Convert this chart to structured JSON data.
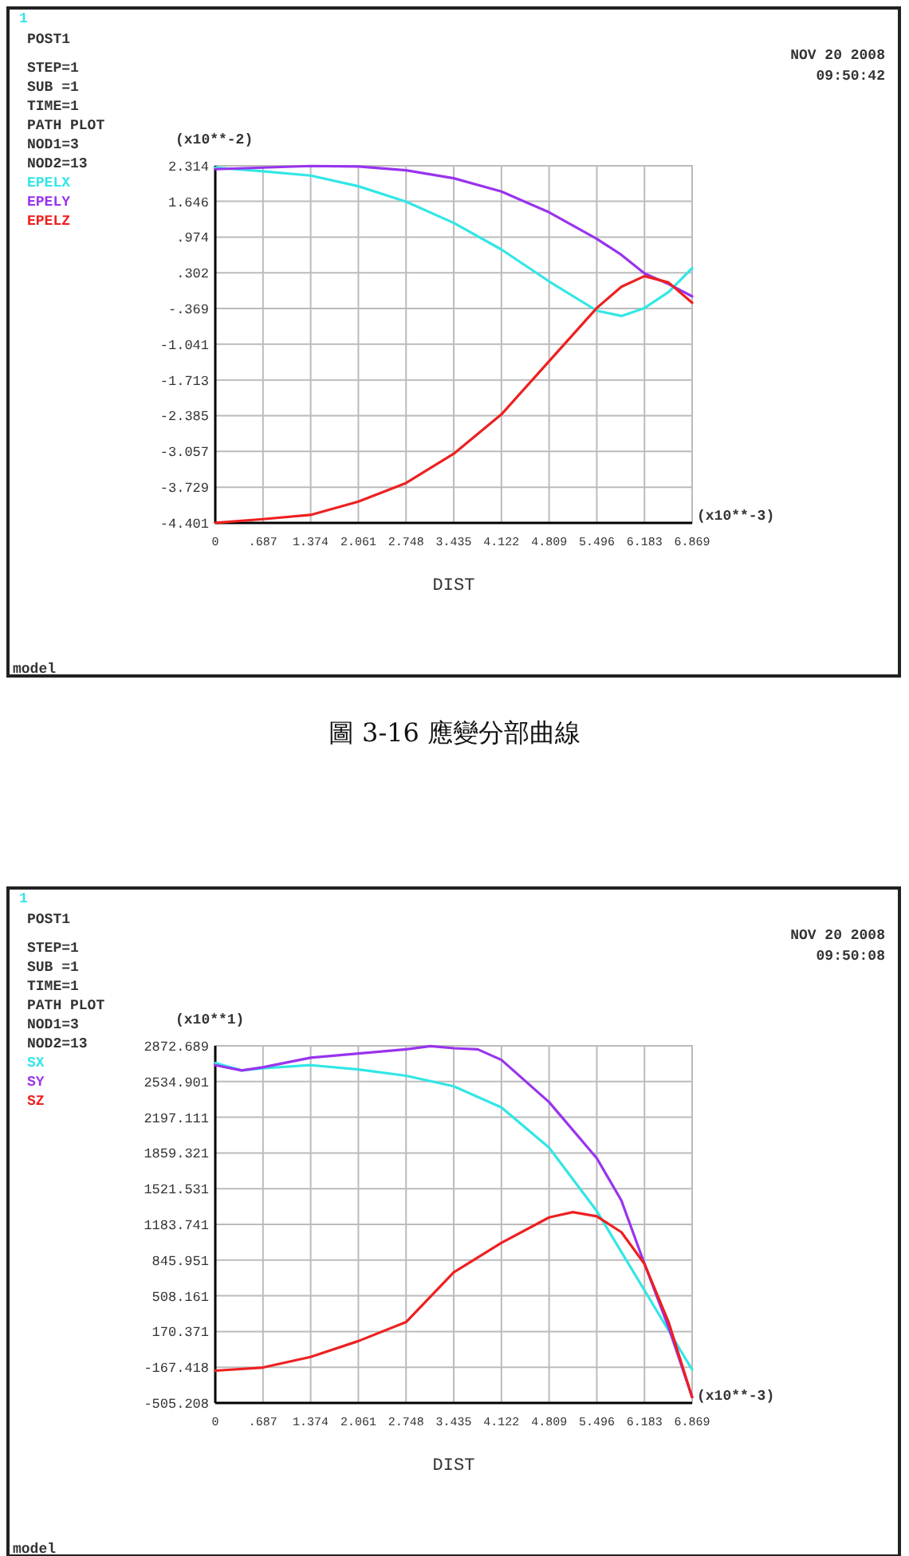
{
  "chart_data": [
    {
      "type": "line",
      "xlabel": "DIST",
      "grid": true,
      "legend": "left",
      "annotations": [
        "1",
        "POST1",
        "STEP=1",
        "SUB =1",
        "TIME=1",
        "PATH PLOT",
        "NOD1=3",
        "NOD2=13",
        "NOV 20 2008",
        "09:50:42",
        "(x10**-2)",
        "(x10**-3)",
        "model",
        "圖 3-16 應變分部曲線"
      ],
      "x": [
        0,
        0.687,
        1.374,
        2.061,
        2.748,
        3.435,
        4.122,
        4.809,
        5.496,
        5.85,
        6.183,
        6.53,
        6.869
      ],
      "xlim": [
        0,
        6.869
      ],
      "xticks": [
        0,
        {
          "value": 0.687,
          "label": ".687"
        },
        1.374,
        2.061,
        2.748,
        3.435,
        4.122,
        4.809,
        5.496,
        6.183,
        6.869
      ],
      "ylim": [
        -4.401,
        2.314
      ],
      "yticks": [
        2.314,
        1.646,
        {
          "value": 0.974,
          "label": ".974"
        },
        {
          "value": 0.302,
          "label": ".302"
        },
        {
          "value": -0.369,
          "label": "-.369"
        },
        -1.041,
        -1.713,
        -2.385,
        -3.057,
        -3.729,
        -4.401
      ],
      "series": [
        {
          "name": "EPELX",
          "color": "#33e6e6",
          "values": [
            2.28,
            2.21,
            2.13,
            1.93,
            1.64,
            1.24,
            0.74,
            0.14,
            -0.41,
            -0.51,
            -0.36,
            -0.06,
            0.39
          ]
        },
        {
          "name": "EPELY",
          "color": "#9933ee",
          "values": [
            2.25,
            2.28,
            2.31,
            2.3,
            2.23,
            2.08,
            1.83,
            1.44,
            0.94,
            0.64,
            0.29,
            0.09,
            -0.14
          ]
        },
        {
          "name": "EPELZ",
          "color": "#ee2020",
          "values": [
            -4.4,
            -4.33,
            -4.25,
            -4.0,
            -3.65,
            -3.1,
            -2.36,
            -1.36,
            -0.36,
            0.04,
            0.24,
            0.12,
            -0.26
          ]
        }
      ]
    },
    {
      "type": "line",
      "xlabel": "DIST",
      "grid": true,
      "legend": "left",
      "annotations": [
        "1",
        "POST1",
        "STEP=1",
        "SUB =1",
        "TIME=1",
        "PATH PLOT",
        "NOD1=3",
        "NOD2=13",
        "NOV 20 2008",
        "09:50:08",
        "(x10**1)",
        "(x10**-3)",
        "model"
      ],
      "x": [
        0,
        0.38,
        0.687,
        1.374,
        2.061,
        2.748,
        3.1,
        3.435,
        3.78,
        4.122,
        4.809,
        5.15,
        5.496,
        5.85,
        6.183,
        6.53,
        6.869
      ],
      "xlim": [
        0,
        6.869
      ],
      "xticks": [
        0,
        {
          "value": 0.687,
          "label": ".687"
        },
        1.374,
        2.061,
        2.748,
        3.435,
        4.122,
        4.809,
        5.496,
        6.183,
        6.869
      ],
      "ylim": [
        -505.208,
        2872.689
      ],
      "yticks": [
        2872.689,
        2534.901,
        2197.111,
        1859.321,
        1521.531,
        1183.741,
        845.951,
        508.161,
        170.371,
        -167.418,
        -505.208
      ],
      "series": [
        {
          "name": "SX",
          "color": "#33e6e6",
          "values": [
            2710,
            2640,
            2660,
            2690,
            2650,
            2590,
            null,
            2490,
            null,
            2290,
            1910,
            null,
            1310,
            null,
            560,
            null,
            -190
          ]
        },
        {
          "name": "SY",
          "color": "#9933ee",
          "values": [
            2690,
            2640,
            2670,
            2760,
            2800,
            2840,
            2870,
            2850,
            2840,
            2740,
            2340,
            null,
            1810,
            1410,
            810,
            210,
            -450
          ]
        },
        {
          "name": "SZ",
          "color": "#ee2020",
          "values": [
            -200,
            null,
            -170,
            -70,
            80,
            260,
            null,
            730,
            null,
            1010,
            1250,
            1300,
            1260,
            1110,
            810,
            260,
            -450
          ]
        }
      ]
    }
  ]
}
